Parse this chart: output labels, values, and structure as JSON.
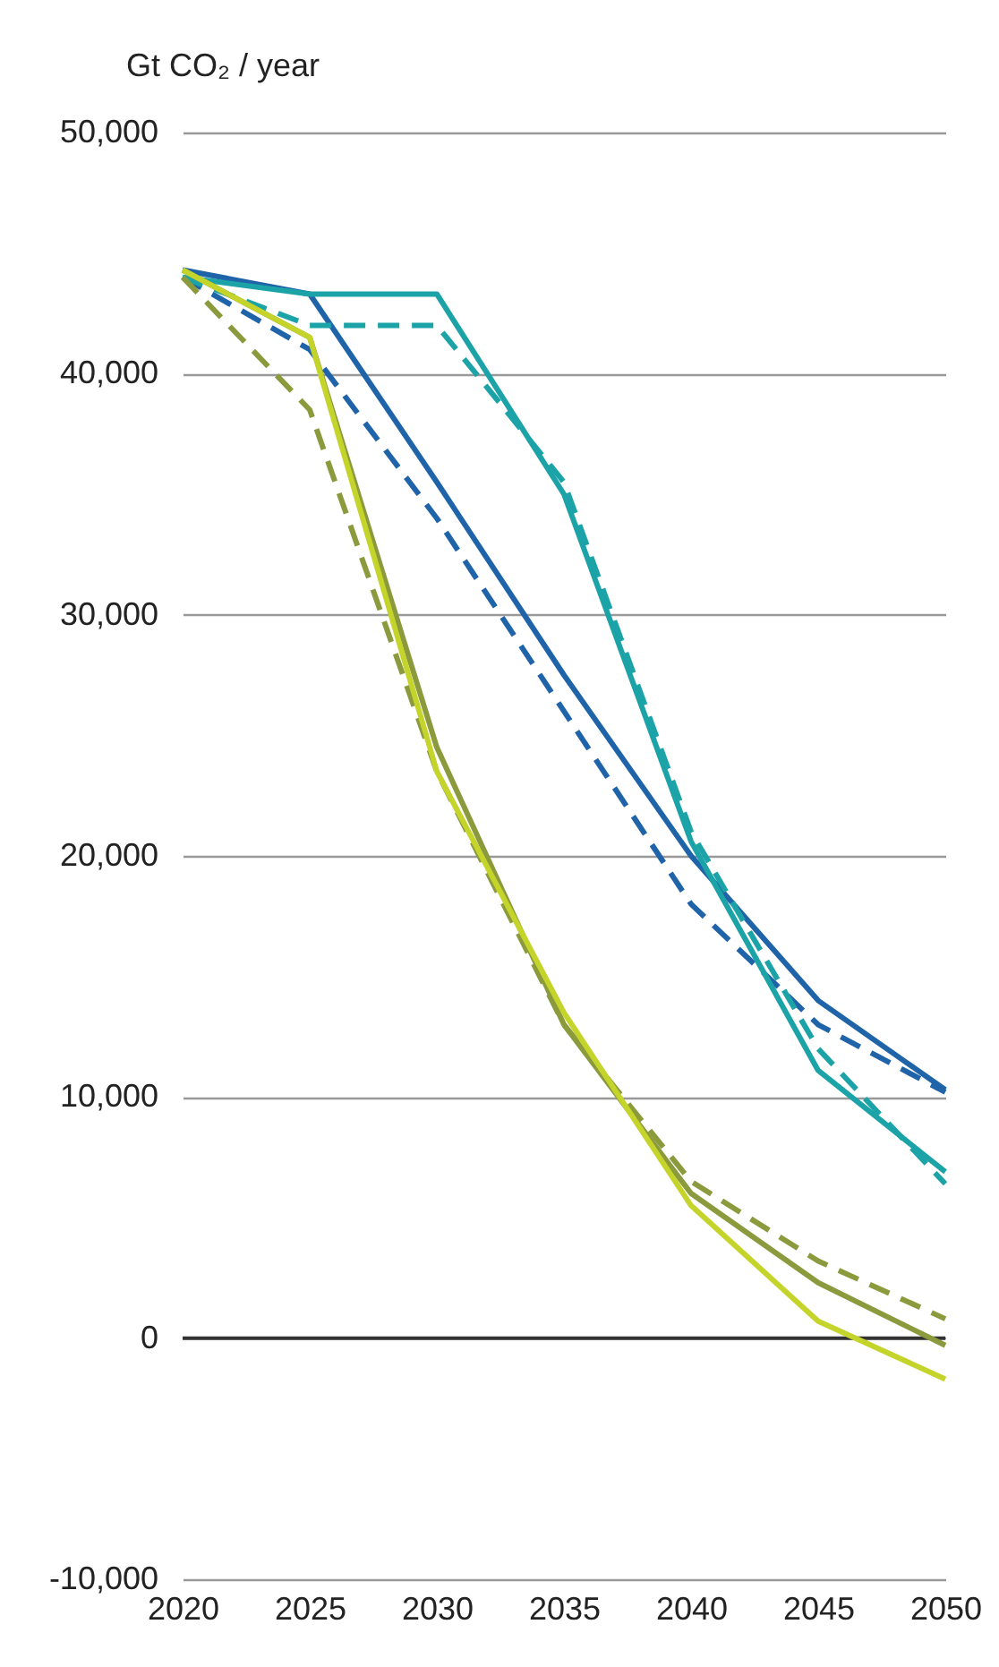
{
  "chart_data": {
    "type": "line",
    "ylabel": "Gt CO₂ / year",
    "x": [
      2020,
      2025,
      2030,
      2035,
      2040,
      2045,
      2050
    ],
    "xlim": [
      2020,
      2050
    ],
    "xticks": [
      2020,
      2025,
      2030,
      2035,
      2040,
      2045,
      2050
    ],
    "ylim": [
      -10000,
      50000
    ],
    "yticks": [
      {
        "value": -10000,
        "label": "-10,000"
      },
      0,
      {
        "value": 10000,
        "label": "10,000"
      },
      {
        "value": 20000,
        "label": "20,000"
      },
      {
        "value": 30000,
        "label": "30,000"
      },
      {
        "value": 40000,
        "label": "40,000"
      },
      {
        "value": 50000,
        "label": "50,000"
      }
    ],
    "grid": "y",
    "marker": "none",
    "ref_lines": [
      {
        "axis": "y",
        "value": 0,
        "color": "#333333"
      }
    ],
    "series": [
      {
        "color": "#1f63a8",
        "line_style": "solid",
        "values": [
          44300,
          43300,
          35500,
          27500,
          20000,
          14000,
          10300
        ]
      },
      {
        "color": "#1f63a8",
        "line_style": "dashed",
        "values": [
          44000,
          41000,
          34000,
          26000,
          18000,
          13000,
          10200
        ]
      },
      {
        "color": "#1ba3a8",
        "line_style": "solid",
        "values": [
          44000,
          43300,
          43300,
          35000,
          20600,
          11100,
          6900
        ]
      },
      {
        "color": "#1ba3a8",
        "line_style": "dashed",
        "values": [
          44000,
          42000,
          42000,
          35500,
          21000,
          12000,
          6400
        ]
      },
      {
        "color": "#8a9a3c",
        "line_style": "solid",
        "values": [
          44300,
          41500,
          24500,
          13000,
          6000,
          2300,
          -300
        ]
      },
      {
        "color": "#8a9a3c",
        "line_style": "dashed",
        "values": [
          44000,
          38500,
          23500,
          13000,
          6500,
          3200,
          800
        ]
      },
      {
        "color": "#c5d42a",
        "line_style": "solid",
        "values": [
          44300,
          41500,
          23500,
          13500,
          5500,
          700,
          -1700
        ]
      }
    ]
  }
}
